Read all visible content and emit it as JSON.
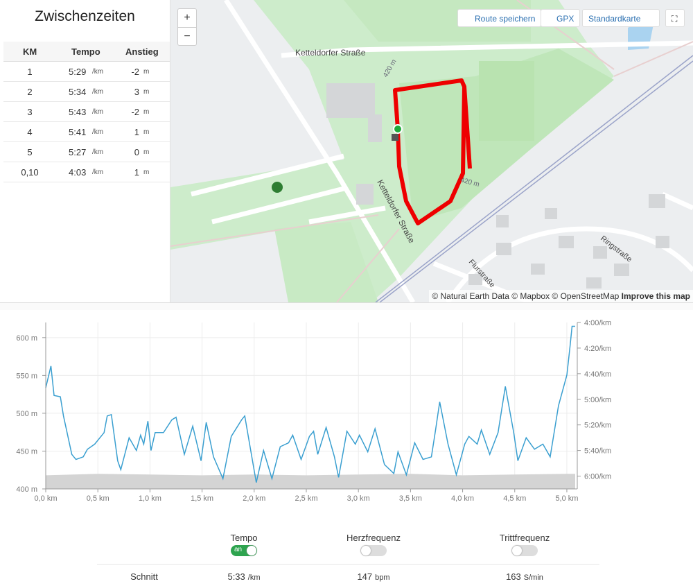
{
  "splits": {
    "title": "Zwischenzeiten",
    "headers": [
      "KM",
      "Tempo",
      "Anstieg"
    ],
    "rows": [
      [
        "1",
        "5:29",
        "/km",
        "-2",
        "m"
      ],
      [
        "2",
        "5:34",
        "/km",
        "3",
        "m"
      ],
      [
        "3",
        "5:43",
        "/km",
        "-2",
        "m"
      ],
      [
        "4",
        "5:41",
        "/km",
        "1",
        "m"
      ],
      [
        "5",
        "5:27",
        "/km",
        "0",
        "m"
      ],
      [
        "0,10",
        "4:03",
        "/km",
        "1",
        "m"
      ]
    ]
  },
  "map": {
    "zoom_in": "+",
    "zoom_out": "−",
    "buttons": [
      "Route speichern",
      "GPX",
      "Standardkarte"
    ],
    "labels": [
      "Ketteldorfer Straße",
      "Ketteldorfer Straße",
      "Ringstraße",
      "Flurstraße",
      "420 m",
      "420 m"
    ],
    "attribution": "© Natural Earth Data © Mapbox © OpenStreetMap",
    "improve": "Improve this map"
  },
  "chart_data": {
    "type": "line",
    "xlim": [
      0,
      5.1
    ],
    "xticks": [
      {
        "value": 0,
        "label": "0,0 km"
      },
      {
        "value": 0.5,
        "label": "0,5 km"
      },
      {
        "value": 1,
        "label": "1,0 km"
      },
      {
        "value": 1.5,
        "label": "1,5 km"
      },
      {
        "value": 2,
        "label": "2,0 km"
      },
      {
        "value": 2.5,
        "label": "2,5 km"
      },
      {
        "value": 3,
        "label": "3,0 km"
      },
      {
        "value": 3.5,
        "label": "3,5 km"
      },
      {
        "value": 4,
        "label": "4,0 km"
      },
      {
        "value": 4.5,
        "label": "4,5 km"
      },
      {
        "value": 5,
        "label": "5,0 km"
      }
    ],
    "ylim": [
      400,
      620
    ],
    "yticks": [
      {
        "value": 400,
        "label": "400 m"
      },
      {
        "value": 450,
        "label": "450 m"
      },
      {
        "value": 500,
        "label": "500 m"
      },
      {
        "value": 550,
        "label": "550 m"
      },
      {
        "value": 600,
        "label": "600 m"
      }
    ],
    "y2lim": [
      370,
      240
    ],
    "y2ticks": [
      {
        "value": 240,
        "label": "4:00/km"
      },
      {
        "value": 260,
        "label": "4:20/km"
      },
      {
        "value": 280,
        "label": "4:40/km"
      },
      {
        "value": 300,
        "label": "5:00/km"
      },
      {
        "value": 320,
        "label": "5:20/km"
      },
      {
        "value": 340,
        "label": "5:40/km"
      },
      {
        "value": 360,
        "label": "6:00/km"
      }
    ],
    "grid": true,
    "series": [
      {
        "color": "#d4d4d4",
        "area": true,
        "x": [
          0,
          0.5,
          1,
          1.5,
          2,
          2.5,
          3,
          3.5,
          4,
          4.5,
          5,
          5.08
        ],
        "values": [
          418,
          420,
          419,
          418,
          419,
          418,
          419,
          420,
          418,
          419,
          420,
          420
        ]
      },
      {
        "color": "#3a9fd0",
        "axis": "y2",
        "x": [
          0,
          0.05,
          0.08,
          0.14,
          0.17,
          0.25,
          0.29,
          0.36,
          0.4,
          0.47,
          0.56,
          0.59,
          0.63,
          0.69,
          0.72,
          0.8,
          0.87,
          0.91,
          0.94,
          0.98,
          1.01,
          1.05,
          1.13,
          1.21,
          1.25,
          1.33,
          1.41,
          1.49,
          1.54,
          1.61,
          1.7,
          1.78,
          1.88,
          1.91,
          1.99,
          2.02,
          2.09,
          2.17,
          2.25,
          2.33,
          2.37,
          2.45,
          2.53,
          2.57,
          2.61,
          2.69,
          2.77,
          2.81,
          2.89,
          2.97,
          3.01,
          3.09,
          3.16,
          3.25,
          3.34,
          3.38,
          3.46,
          3.54,
          3.62,
          3.7,
          3.74,
          3.78,
          3.86,
          3.94,
          4.02,
          4.06,
          4.14,
          4.18,
          4.26,
          4.34,
          4.41,
          4.49,
          4.53,
          4.61,
          4.69,
          4.77,
          4.84,
          4.92,
          5,
          5.03,
          5.05,
          5.08
        ],
        "values": [
          291,
          274,
          297,
          298,
          313,
          343,
          347,
          345,
          339,
          335,
          326,
          313,
          312,
          348,
          355,
          330,
          340,
          328,
          335,
          317,
          340,
          326,
          326,
          316,
          314,
          343,
          321,
          348,
          318,
          345,
          362,
          329,
          316,
          313,
          351,
          365,
          340,
          362,
          337,
          334,
          328,
          347,
          329,
          325,
          343,
          322,
          345,
          361,
          325,
          335,
          328,
          341,
          323,
          351,
          358,
          341,
          359,
          334,
          347,
          345,
          324,
          302,
          335,
          359,
          335,
          329,
          335,
          324,
          343,
          326,
          290,
          326,
          348,
          330,
          339,
          335,
          345,
          305,
          281,
          259,
          243,
          243
        ]
      }
    ]
  },
  "controls": {
    "toggles": [
      {
        "label": "Tempo",
        "state": "an"
      },
      {
        "label": "Herzfrequenz"
      },
      {
        "label": "Trittfrequenz"
      }
    ],
    "summary": {
      "label": "Schnitt",
      "items": [
        [
          "5:33",
          "/km"
        ],
        [
          "147",
          "bpm"
        ],
        [
          "163",
          "S/min"
        ]
      ]
    }
  }
}
